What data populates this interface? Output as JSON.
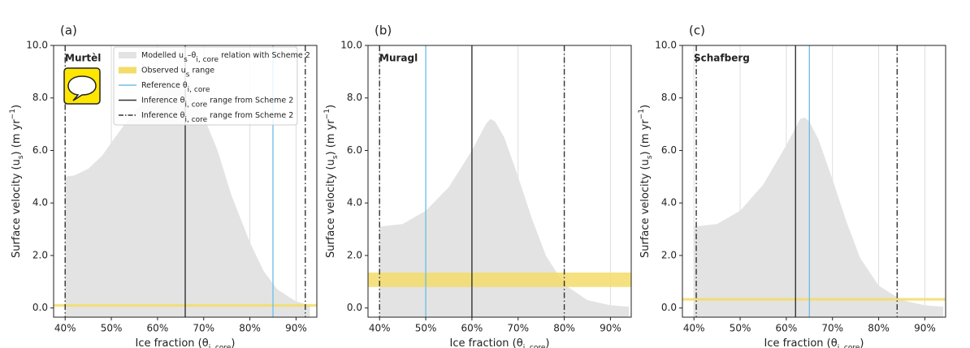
{
  "chart_data": [
    {
      "type": "area",
      "title": "(a)",
      "site": "Murtèl",
      "xlabel": [
        "Ice fraction (θ",
        "i, core",
        ")"
      ],
      "ylabel": [
        "Surface velocity (u",
        "s",
        ") (m yr",
        "−1",
        ")"
      ],
      "x": [
        40,
        42,
        45,
        48,
        50,
        55,
        60,
        64,
        67,
        70,
        73,
        76,
        80,
        83,
        86,
        90,
        93
      ],
      "values": [
        5.0,
        5.05,
        5.3,
        5.8,
        6.3,
        7.5,
        8.3,
        8.5,
        8.2,
        7.3,
        6.0,
        4.3,
        2.5,
        1.4,
        0.7,
        0.25,
        0.1
      ],
      "color": "#e3e3e3",
      "observed_range": [
        0.05,
        0.15
      ],
      "observed_color": "#f3dc6a",
      "reference": 85,
      "reference_color": "#74bfe6",
      "inference": 66,
      "inference_range": [
        40,
        92
      ],
      "inference_color": "#333333",
      "xlim": [
        37.5,
        94.5
      ],
      "ylim": [
        -0.35,
        10
      ],
      "xticks": [
        {
          "value": 40,
          "label": "40%"
        },
        {
          "value": 50,
          "label": "50%"
        },
        {
          "value": 60,
          "label": "60%"
        },
        {
          "value": 70,
          "label": "70%"
        },
        {
          "value": 80,
          "label": "80%"
        },
        {
          "value": 90,
          "label": "90%"
        }
      ],
      "yticks": [
        {
          "value": 0,
          "label": "0.0"
        },
        {
          "value": 2,
          "label": "2.0"
        },
        {
          "value": 4,
          "label": "4.0"
        },
        {
          "value": 6,
          "label": "6.0"
        },
        {
          "value": 8,
          "label": "8.0"
        },
        {
          "value": 10,
          "label": "10.0"
        }
      ],
      "grid": true,
      "legend": [
        {
          "label": [
            "Modelled u",
            "s",
            "–θ",
            "i, core",
            " relation with Scheme 2"
          ],
          "style": "patch",
          "color": "#e3e3e3"
        },
        {
          "label": [
            "Observed u",
            "s",
            " range"
          ],
          "style": "patch",
          "color": "#f3dc6a"
        },
        {
          "label": [
            "Reference θ",
            "i, core"
          ],
          "style": "solid",
          "color": "#74bfe6"
        },
        {
          "label": [
            "Inference θ",
            "i, core",
            " range from Scheme 2"
          ],
          "style": "solid",
          "color": "#333333"
        },
        {
          "label": [
            "Inference θ",
            "i, core",
            " range from Scheme 2"
          ],
          "style": "dashdot",
          "color": "#333333"
        }
      ]
    },
    {
      "type": "area",
      "title": "(b)",
      "site": "Muragl",
      "xlabel": [
        "Ice fraction (θ",
        "i, core",
        ")"
      ],
      "ylabel": [
        "Surface velocity (u",
        "s",
        ") (m yr",
        "−1",
        ")"
      ],
      "x": [
        40,
        45,
        50,
        55,
        60,
        63,
        64,
        65,
        67,
        70,
        73,
        76,
        80,
        85,
        90,
        94
      ],
      "values": [
        3.1,
        3.2,
        3.7,
        4.6,
        6.0,
        7.0,
        7.2,
        7.1,
        6.5,
        5.0,
        3.4,
        2.0,
        0.9,
        0.3,
        0.1,
        0.05
      ],
      "color": "#e3e3e3",
      "observed_range": [
        0.8,
        1.35
      ],
      "observed_color": "#f3dc6a",
      "reference": 50,
      "reference_color": "#74bfe6",
      "inference": 60,
      "inference_range": [
        40,
        80
      ],
      "inference_color": "#333333",
      "xlim": [
        37.5,
        94.5
      ],
      "ylim": [
        -0.35,
        10
      ],
      "xticks": [
        {
          "value": 40,
          "label": "40%"
        },
        {
          "value": 50,
          "label": "50%"
        },
        {
          "value": 60,
          "label": "60%"
        },
        {
          "value": 70,
          "label": "70%"
        },
        {
          "value": 80,
          "label": "80%"
        },
        {
          "value": 90,
          "label": "90%"
        }
      ],
      "yticks": [
        {
          "value": 0,
          "label": "0.0"
        },
        {
          "value": 2,
          "label": "2.0"
        },
        {
          "value": 4,
          "label": "4.0"
        },
        {
          "value": 6,
          "label": "6.0"
        },
        {
          "value": 8,
          "label": "8.0"
        },
        {
          "value": 10,
          "label": "10.0"
        }
      ],
      "grid": true
    },
    {
      "type": "area",
      "title": "(c)",
      "site": "Schafberg",
      "xlabel": [
        "Ice fraction (θ",
        "i, core",
        ")"
      ],
      "ylabel": [
        "Surface velocity (u",
        "s",
        ") (m yr",
        "−1",
        ")"
      ],
      "x": [
        40,
        45,
        50,
        55,
        60,
        63,
        64,
        65,
        67,
        70,
        73,
        76,
        80,
        85,
        90,
        94
      ],
      "values": [
        3.1,
        3.2,
        3.7,
        4.7,
        6.2,
        7.2,
        7.25,
        7.1,
        6.4,
        4.9,
        3.3,
        1.9,
        0.85,
        0.3,
        0.1,
        0.05
      ],
      "color": "#e3e3e3",
      "observed_range": [
        0.28,
        0.38
      ],
      "observed_color": "#f3dc6a",
      "reference": 65,
      "reference_color": "#74bfe6",
      "inference": 62,
      "inference_range": [
        40.5,
        84
      ],
      "inference_color": "#333333",
      "xlim": [
        37.5,
        94.5
      ],
      "ylim": [
        -0.35,
        10
      ],
      "xticks": [
        {
          "value": 40,
          "label": "40%"
        },
        {
          "value": 50,
          "label": "50%"
        },
        {
          "value": 60,
          "label": "60%"
        },
        {
          "value": 70,
          "label": "70%"
        },
        {
          "value": 80,
          "label": "80%"
        },
        {
          "value": 90,
          "label": "90%"
        }
      ],
      "yticks": [
        {
          "value": 0,
          "label": "0.0"
        },
        {
          "value": 2,
          "label": "2.0"
        },
        {
          "value": 4,
          "label": "4.0"
        },
        {
          "value": 6,
          "label": "6.0"
        },
        {
          "value": 8,
          "label": "8.0"
        },
        {
          "value": 10,
          "label": "10.0"
        }
      ],
      "grid": true
    }
  ]
}
